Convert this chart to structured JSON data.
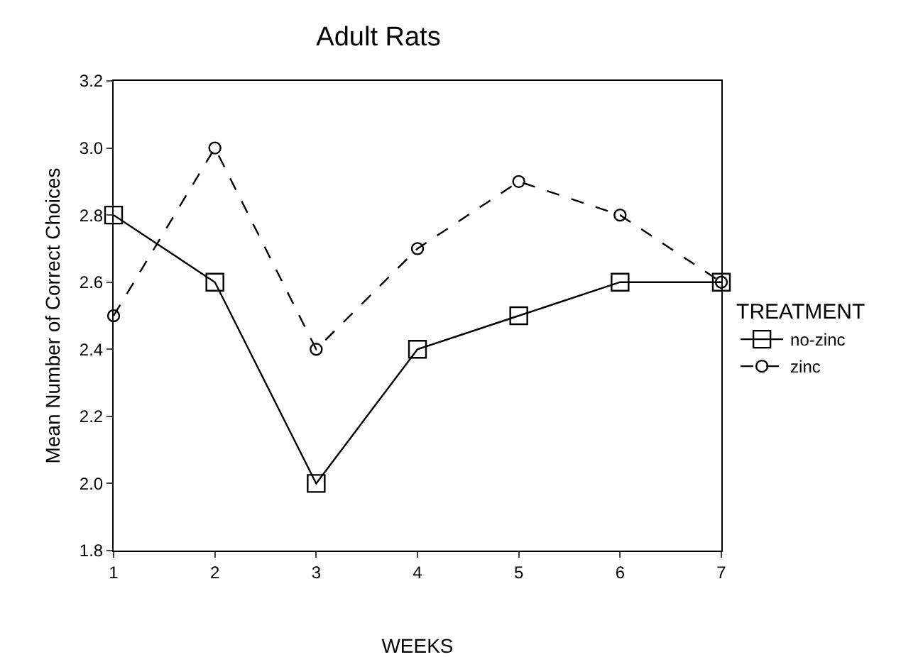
{
  "chart_data": {
    "type": "line",
    "title": "Adult Rats",
    "xlabel": "WEEKS",
    "ylabel": "Mean Number of Correct Choices",
    "legend_title": "TREATMENT",
    "x": [
      1,
      2,
      3,
      4,
      5,
      6,
      7
    ],
    "series": [
      {
        "name": "no-zinc",
        "color": "#000000",
        "values": [
          2.8,
          2.6,
          2.0,
          2.4,
          2.5,
          2.6,
          2.6
        ],
        "marker": "square",
        "line_style": "solid"
      },
      {
        "name": "zinc",
        "color": "#000000",
        "values": [
          2.5,
          3.0,
          2.4,
          2.7,
          2.9,
          2.8,
          2.6
        ],
        "marker": "circle",
        "line_style": "dashed"
      }
    ],
    "xlim": [
      1,
      7
    ],
    "xticks": [
      1,
      2,
      3,
      4,
      5,
      6,
      7
    ],
    "ylim": [
      1.8,
      3.2
    ],
    "yticks": [
      1.8,
      {
        "value": 2,
        "label": "2.0"
      },
      2.2,
      2.4,
      2.6,
      2.8,
      {
        "value": 3,
        "label": "3.0"
      },
      3.2
    ],
    "grid": false,
    "legend": "right"
  }
}
